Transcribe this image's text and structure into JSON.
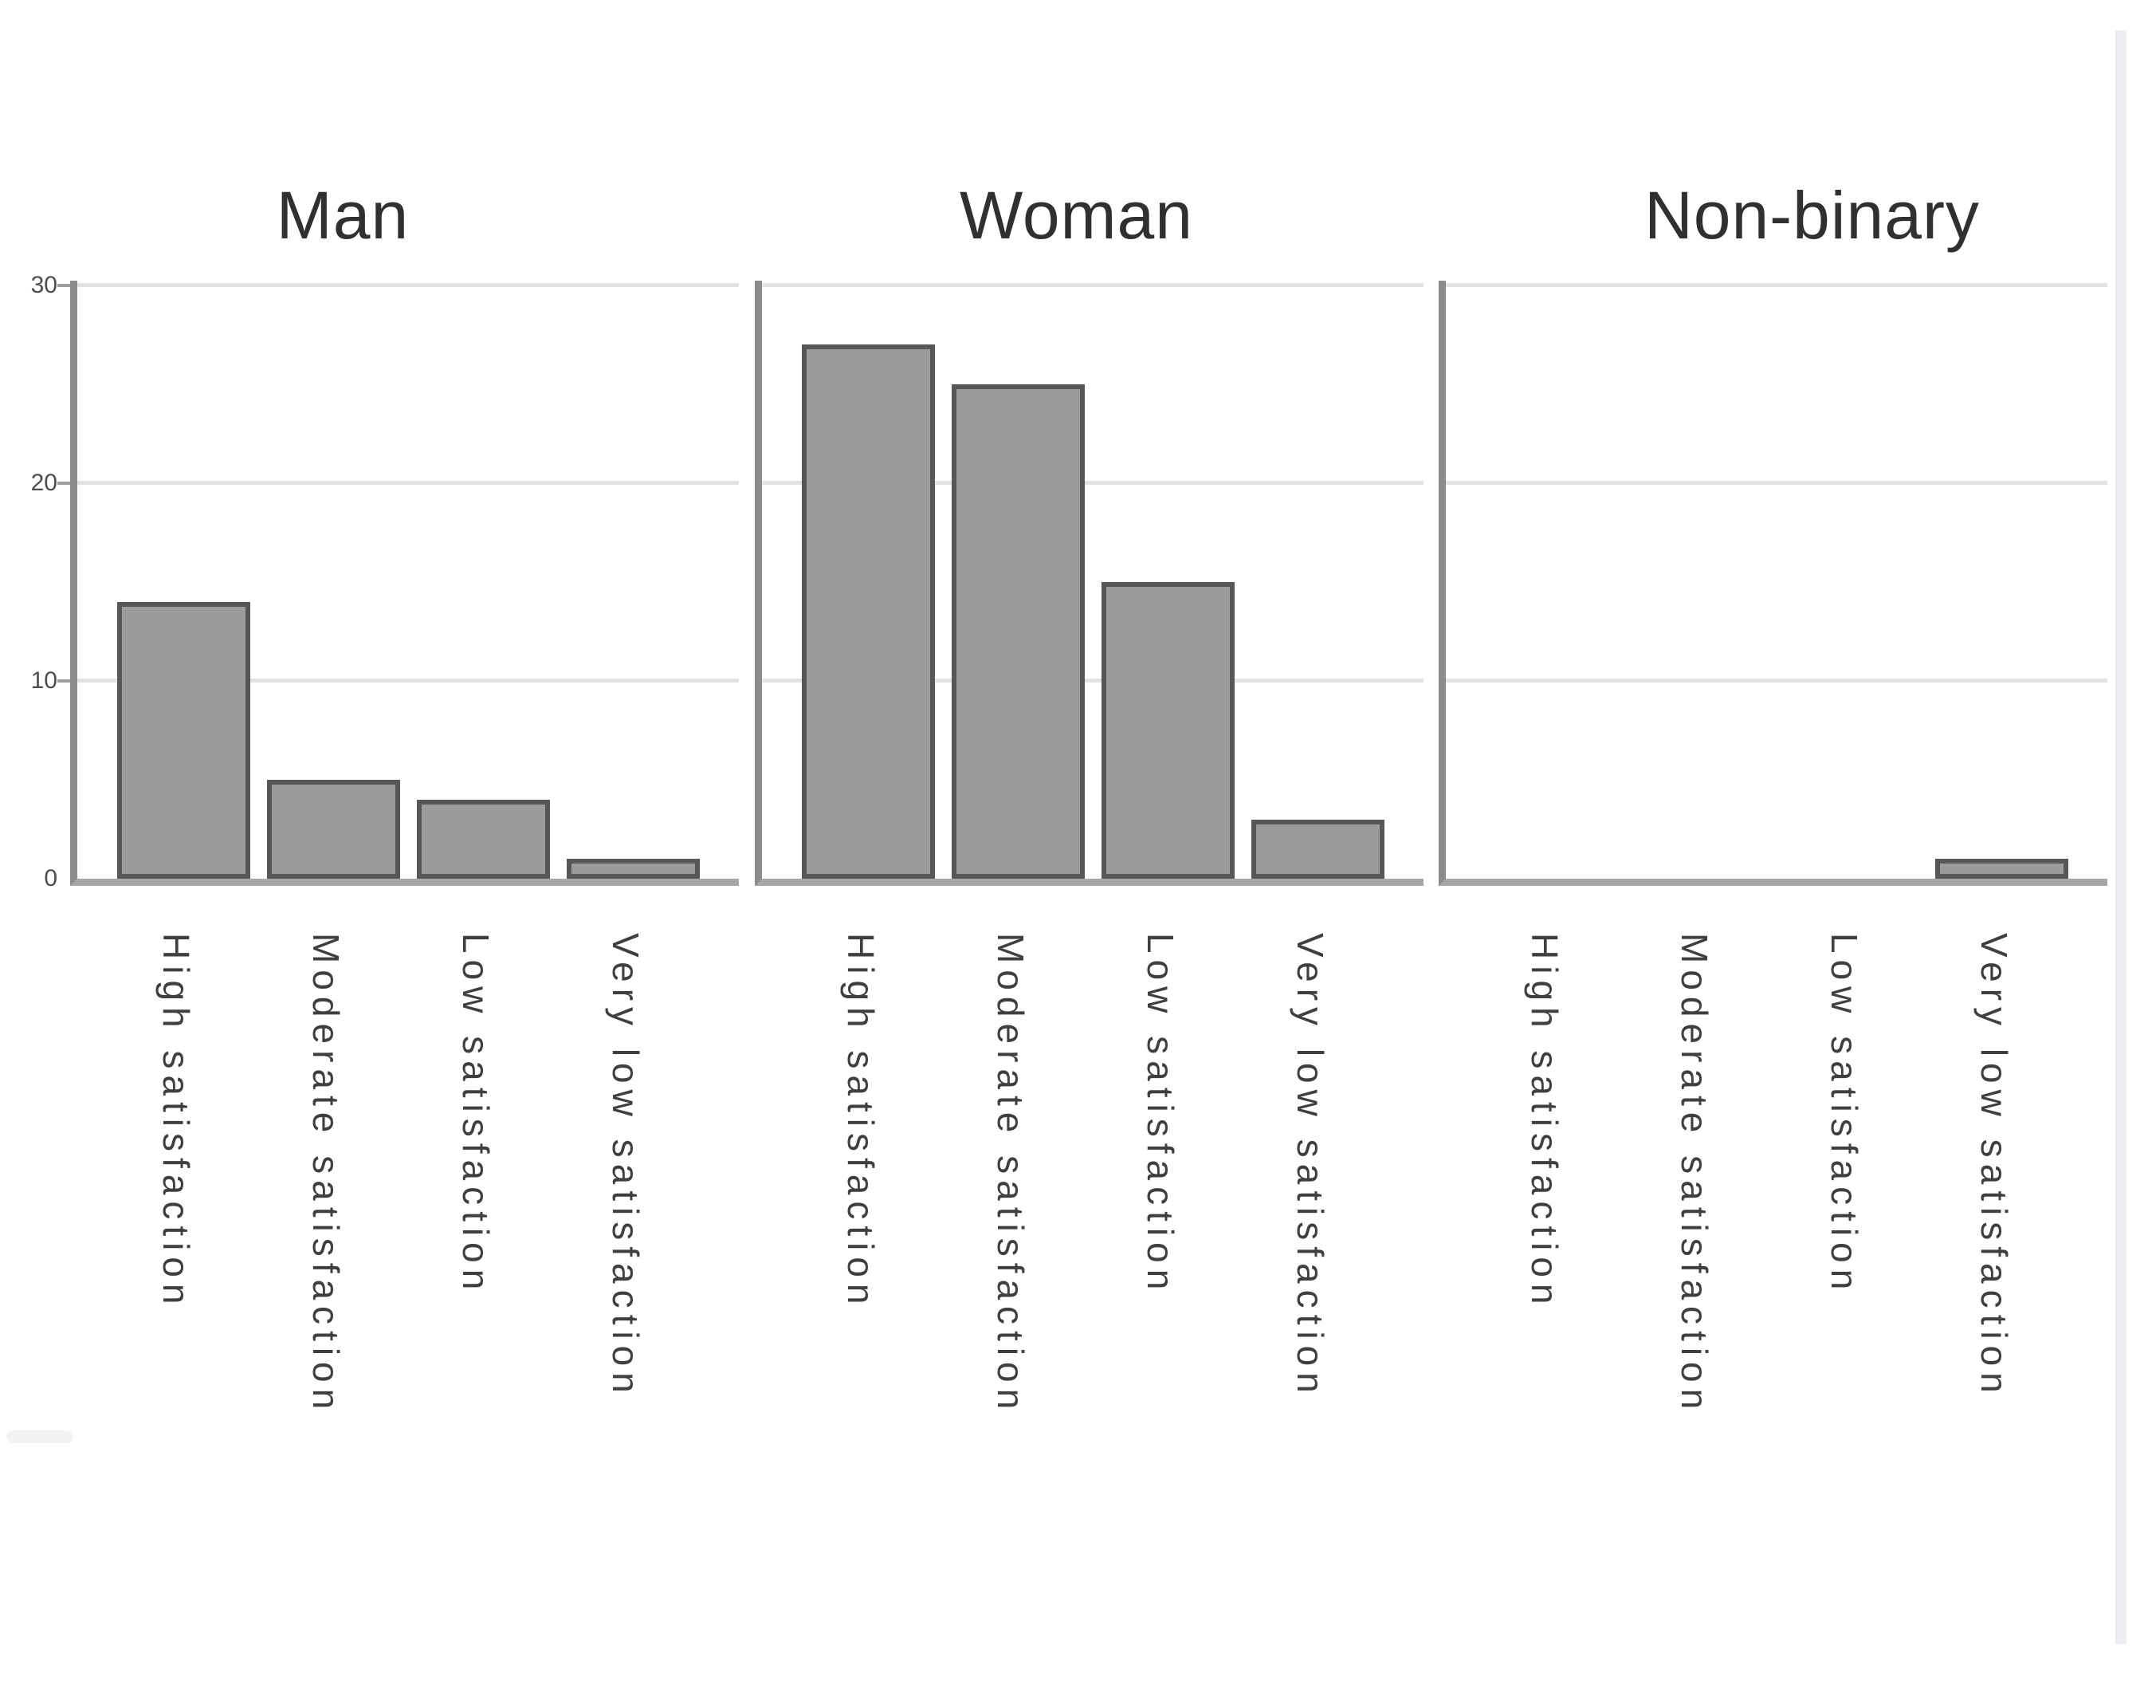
{
  "chart_data": {
    "type": "bar",
    "faceted_by": "gender",
    "facets": [
      {
        "title": "Man",
        "values": [
          14,
          5,
          4,
          1
        ]
      },
      {
        "title": "Woman",
        "values": [
          27,
          25,
          15,
          3
        ]
      },
      {
        "title": "Non-binary",
        "values": [
          0,
          0,
          0,
          1
        ]
      }
    ],
    "categories": [
      "High satisfaction",
      "Moderate satisfaction",
      "Low satisfaction",
      "Very low satisfaction"
    ],
    "y_ticks": [
      "0",
      "10",
      "20",
      "30"
    ],
    "ylim": [
      0,
      30
    ],
    "grid": "horizontal",
    "legend": "none",
    "title": "",
    "xlabel": "",
    "ylabel": "",
    "colors": {
      "bar_fill": "#9b9b9b",
      "bar_border": "#575757",
      "axis_line": "#8c8c8c",
      "baseline": "#a6a6a6",
      "gridline": "#e3e3e3",
      "facet_title_text": "#303030",
      "y_tick_text": "#4d4d4d",
      "x_label_text": "#3f3f3f",
      "scrollbar_track": "#ebedf0",
      "artifact": "#f2f2f2"
    }
  }
}
